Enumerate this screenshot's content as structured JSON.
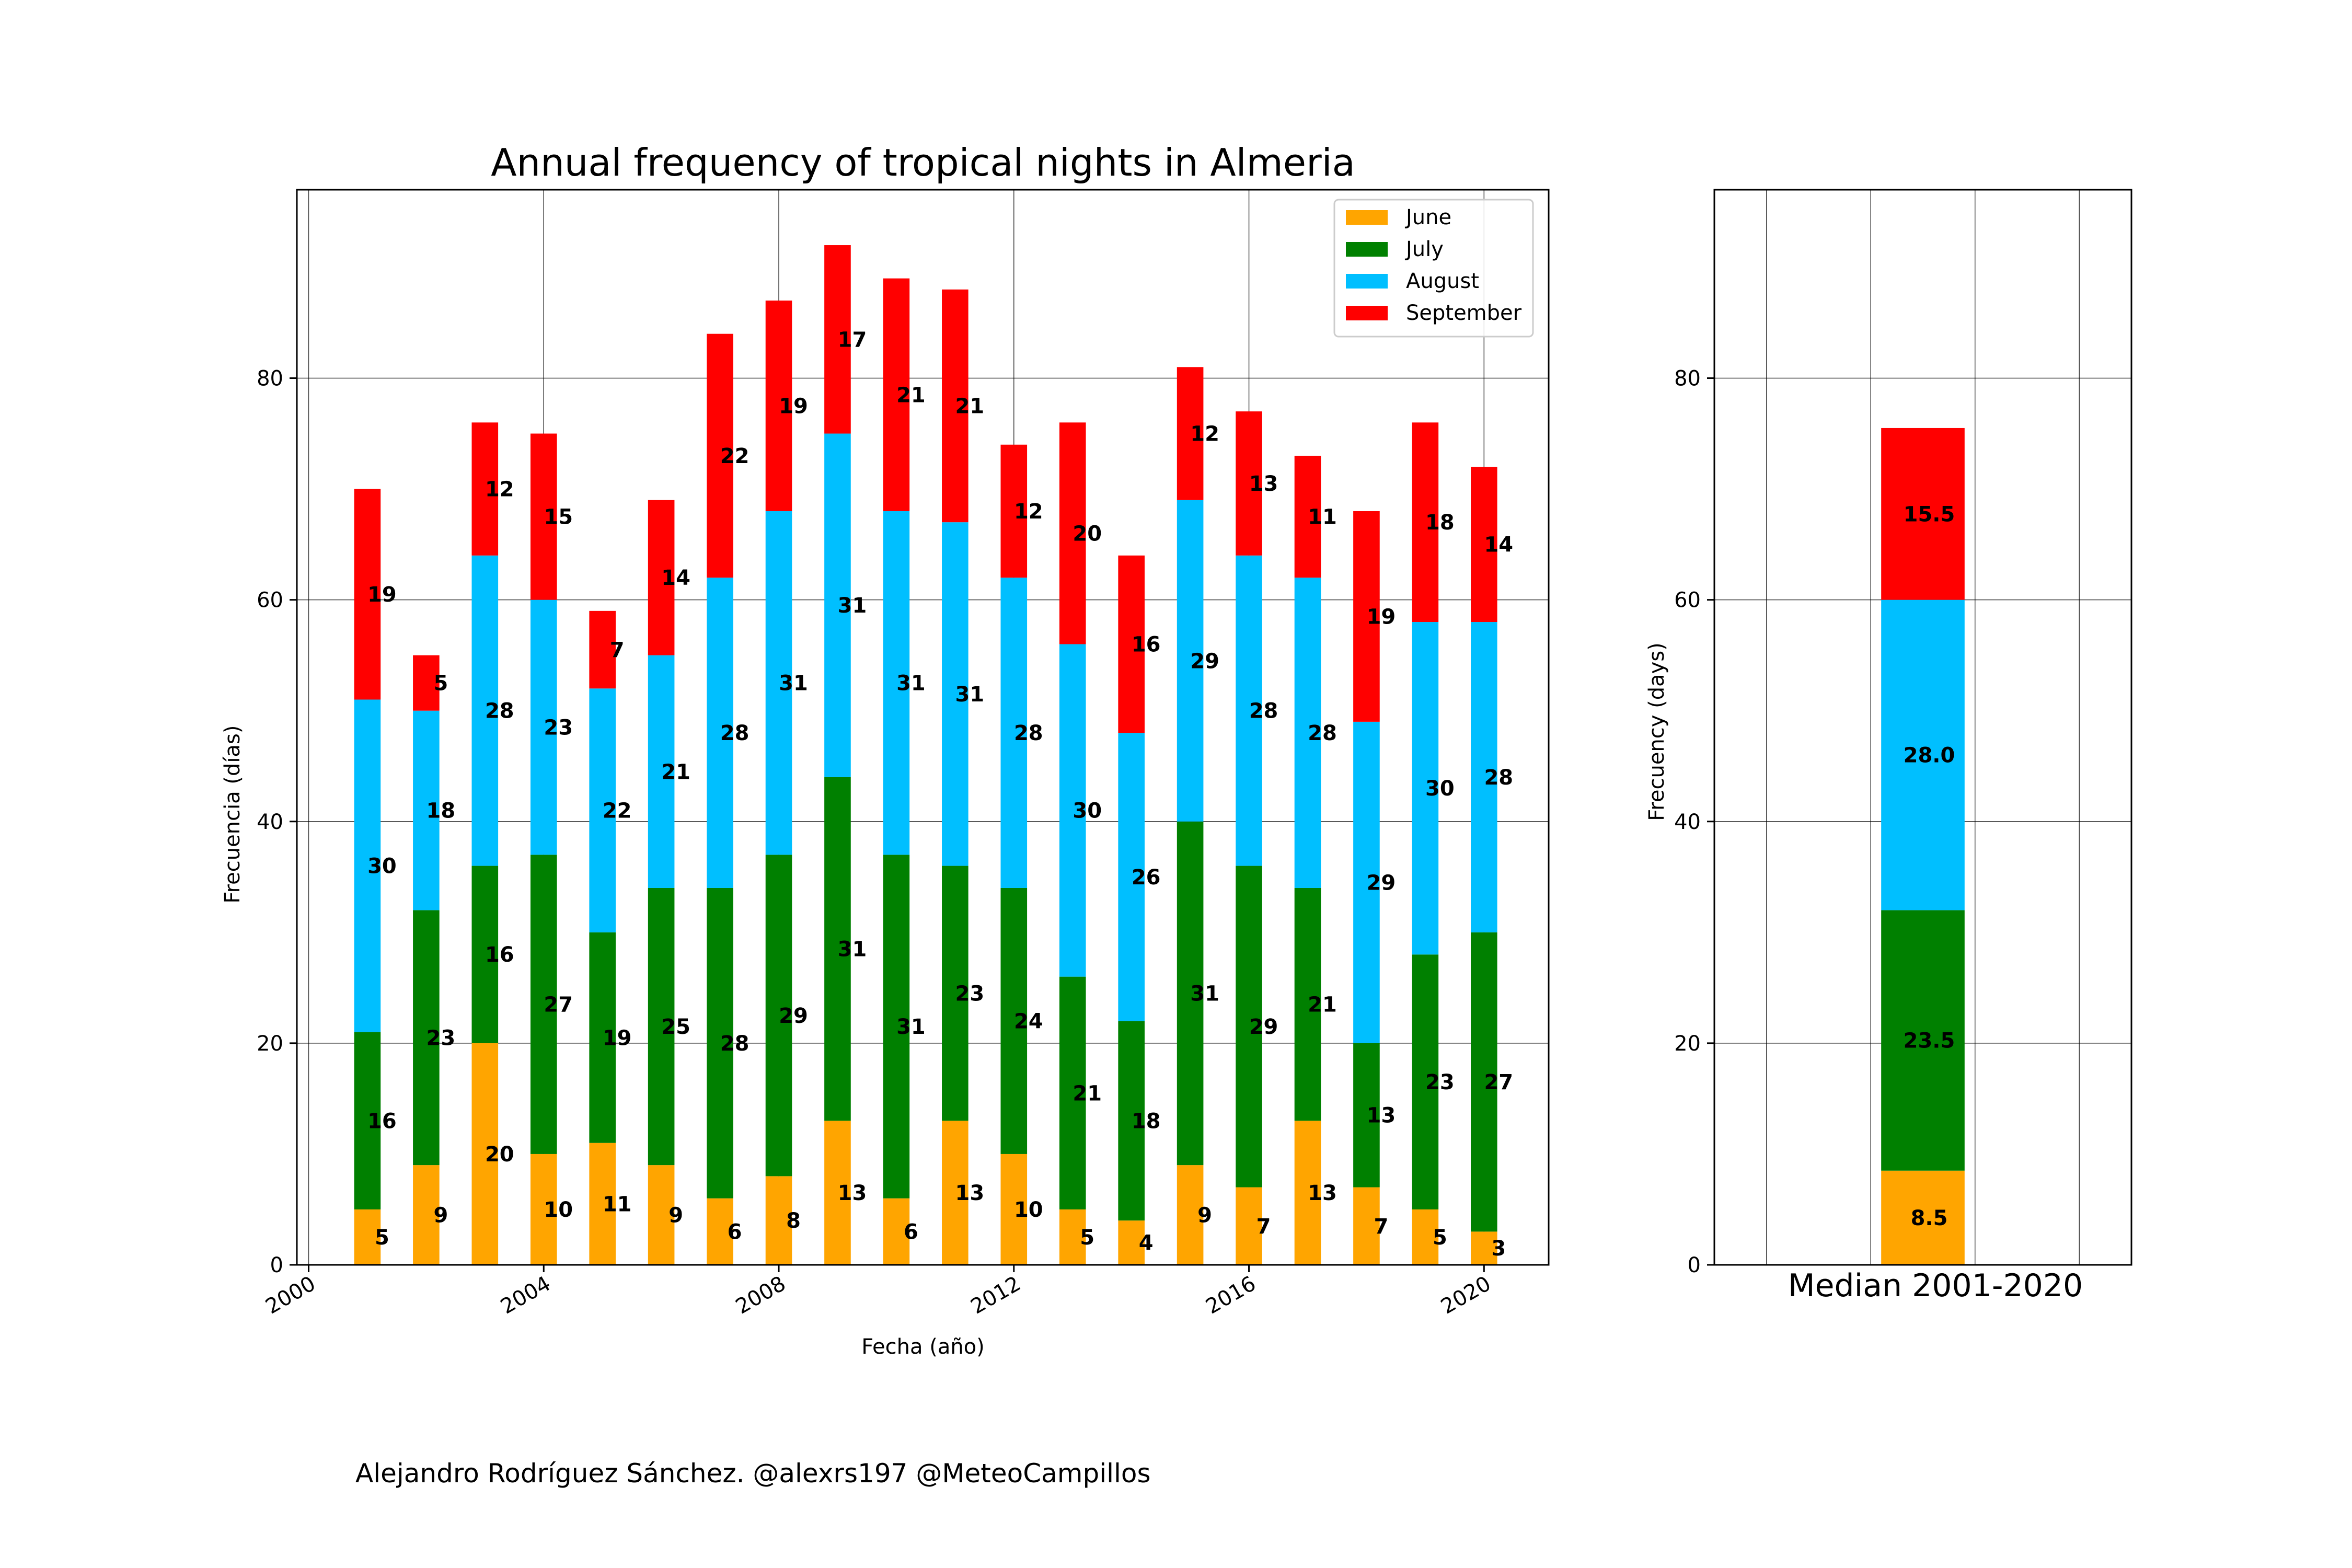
{
  "colors": {
    "June": "#ffa500",
    "July": "#008000",
    "August": "#00bfff",
    "September": "#ff0000"
  },
  "chart_data": [
    {
      "type": "bar",
      "stacked": true,
      "title": "Annual frequency of tropical nights in Almeria",
      "xlabel": "Fecha (año)",
      "ylabel": "Frecuencia (días)",
      "x": [
        2001,
        2002,
        2003,
        2004,
        2005,
        2006,
        2007,
        2008,
        2009,
        2010,
        2011,
        2012,
        2013,
        2014,
        2015,
        2016,
        2017,
        2018,
        2019,
        2020
      ],
      "xlim": [
        1999.8,
        2021.1
      ],
      "ylim": [
        0,
        97
      ],
      "xticks": [
        "2000",
        "2004",
        "2008",
        "2012",
        "2016",
        "2020"
      ],
      "yticks": [
        "0",
        "20",
        "40",
        "60",
        "80"
      ],
      "grid": true,
      "legend_position": "top-right",
      "series": [
        {
          "name": "June",
          "values": [
            5,
            9,
            20,
            10,
            11,
            9,
            6,
            8,
            13,
            6,
            13,
            10,
            5,
            4,
            9,
            7,
            13,
            7,
            5,
            3
          ]
        },
        {
          "name": "July",
          "values": [
            16,
            23,
            16,
            27,
            19,
            25,
            28,
            29,
            31,
            31,
            23,
            24,
            21,
            18,
            31,
            29,
            21,
            13,
            23,
            27
          ]
        },
        {
          "name": "August",
          "values": [
            30,
            18,
            28,
            23,
            22,
            21,
            28,
            31,
            31,
            31,
            31,
            28,
            30,
            26,
            29,
            28,
            28,
            29,
            30,
            28
          ]
        },
        {
          "name": "September",
          "values": [
            19,
            5,
            12,
            15,
            7,
            14,
            22,
            19,
            17,
            21,
            21,
            12,
            20,
            16,
            12,
            13,
            11,
            19,
            18,
            14
          ]
        }
      ]
    },
    {
      "type": "bar",
      "stacked": true,
      "title": "",
      "xlabel": "Median 2001-2020",
      "ylabel": "Frecuency (days)",
      "ylim": [
        0,
        97
      ],
      "yticks": [
        "0",
        "20",
        "40",
        "60",
        "80"
      ],
      "grid": true,
      "series": [
        {
          "name": "June",
          "value": 8.5,
          "label": "8.5"
        },
        {
          "name": "July",
          "value": 23.5,
          "label": "23.5"
        },
        {
          "name": "August",
          "value": 28.0,
          "label": "28.0"
        },
        {
          "name": "September",
          "value": 15.5,
          "label": "15.5"
        }
      ]
    }
  ],
  "footer": {
    "credit": "Alejandro Rodríguez Sánchez. @alexrs197 @MeteoCampillos"
  }
}
